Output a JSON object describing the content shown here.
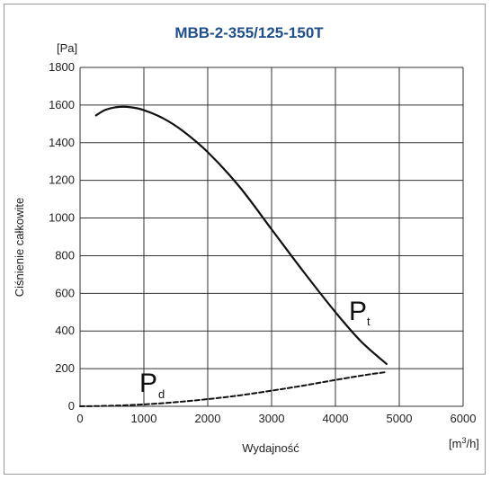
{
  "chart_data": {
    "type": "line",
    "title": "MBB-2-355/125-150T",
    "ylabel": "Ciśnienie całkowite",
    "xlabel": "Wydajność",
    "y_unit": "[Pa]",
    "x_unit_prefix": "[m",
    "x_unit_sup": "3",
    "x_unit_suffix": "/h]",
    "xlim": [
      0,
      6000
    ],
    "ylim": [
      0,
      1800
    ],
    "x_ticks": [
      0,
      1000,
      2000,
      3000,
      4000,
      5000,
      6000
    ],
    "y_ticks": [
      0,
      200,
      400,
      600,
      800,
      1000,
      1200,
      1400,
      1600,
      1800
    ],
    "grid": true,
    "series": [
      {
        "name": "P",
        "subscript": "t",
        "style": "solid",
        "color": "#111111",
        "points": [
          [
            250,
            1545
          ],
          [
            400,
            1575
          ],
          [
            600,
            1590
          ],
          [
            800,
            1588
          ],
          [
            1000,
            1573
          ],
          [
            1300,
            1530
          ],
          [
            1600,
            1465
          ],
          [
            2000,
            1350
          ],
          [
            2500,
            1165
          ],
          [
            3000,
            940
          ],
          [
            3500,
            715
          ],
          [
            4000,
            500
          ],
          [
            4400,
            345
          ],
          [
            4800,
            225
          ]
        ]
      },
      {
        "name": "P",
        "subscript": "d",
        "style": "dashed",
        "color": "#111111",
        "points": [
          [
            0,
            0
          ],
          [
            500,
            3
          ],
          [
            1000,
            10
          ],
          [
            1500,
            22
          ],
          [
            2000,
            38
          ],
          [
            2500,
            58
          ],
          [
            3000,
            83
          ],
          [
            3500,
            110
          ],
          [
            4000,
            140
          ],
          [
            4500,
            168
          ],
          [
            4800,
            182
          ]
        ]
      }
    ]
  }
}
